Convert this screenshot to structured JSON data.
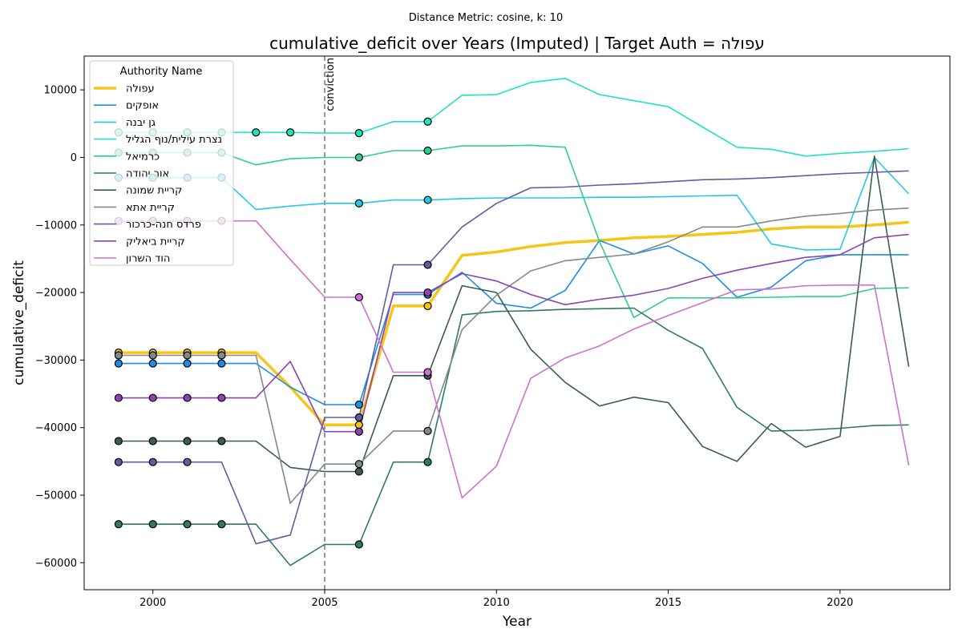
{
  "chart_data": {
    "type": "line",
    "suptitle": "Distance Metric: cosine, k: 10",
    "title": "cumulative_deficit over Years (Imputed) | Target Auth = עפולה",
    "xlabel": "Year",
    "ylabel": "cumulative_deficit",
    "xlim": [
      1998,
      2023.2
    ],
    "ylim": [
      -64000,
      15000
    ],
    "x_ticks": [
      2000,
      2005,
      2010,
      2015,
      2020
    ],
    "y_ticks": [
      -60000,
      -50000,
      -40000,
      -30000,
      -20000,
      -10000,
      0,
      10000
    ],
    "grid": false,
    "legend_title": "Authority Name",
    "legend_position": "top-left",
    "annotation": {
      "text": "conviction",
      "x": 2005
    },
    "x": [
      1999,
      2000,
      2001,
      2002,
      2003,
      2004,
      2005,
      2006,
      2007,
      2008,
      2009,
      2010,
      2011,
      2012,
      2013,
      2014,
      2015,
      2016,
      2017,
      2018,
      2019,
      2020,
      2021,
      2022
    ],
    "series": [
      {
        "name": "עפולה",
        "color": "#f5c518",
        "width": 3.5,
        "imputed_years": [
          1999,
          2000,
          2001,
          2002,
          2006,
          2008
        ],
        "values": [
          -28900,
          -28900,
          -28900,
          -28900,
          -28900,
          -34000,
          -39600,
          -39600,
          -22000,
          -22000,
          -14500,
          -14000,
          -13200,
          -12600,
          -12300,
          -11900,
          -11700,
          -11400,
          -11100,
          -10600,
          -10300,
          -10300,
          -10000,
          -9600
        ]
      },
      {
        "name": "אופקים",
        "color": "#1f8ce6",
        "width": 1.6,
        "imputed_years": [
          1999,
          2000,
          2001,
          2002,
          2006,
          2008
        ],
        "values": [
          -30500,
          -30500,
          -30500,
          -30500,
          -30500,
          -34000,
          -36600,
          -36600,
          -20300,
          -20300,
          -17000,
          -21600,
          -22300,
          -19700,
          -12300,
          -14300,
          -13100,
          -15700,
          -20700,
          -19200,
          -15300,
          -14400,
          -14400,
          -14400
        ]
      },
      {
        "name": "גן יבנה",
        "color": "#22c8e8",
        "width": 1.6,
        "imputed_years": [
          1999,
          2000,
          2001,
          2002,
          2006,
          2008
        ],
        "values": [
          -3000,
          -3000,
          -3000,
          -3000,
          -7700,
          -7200,
          -6800,
          -6800,
          -6300,
          -6300,
          -6100,
          -6000,
          -6000,
          -6000,
          -5900,
          -5900,
          -5800,
          -5700,
          -5600,
          -12800,
          -13700,
          -13600,
          0,
          -5400
        ]
      },
      {
        "name": "נצרת עילית/נוף הגליל",
        "color": "#1de4c0",
        "width": 1.6,
        "imputed_years": [
          1999,
          2000,
          2001,
          2002,
          2003,
          2004,
          2006,
          2008
        ],
        "values": [
          3700,
          3700,
          3700,
          3700,
          3700,
          3700,
          3600,
          3600,
          5300,
          5300,
          9200,
          9300,
          11100,
          11700,
          9300,
          8400,
          7500,
          4500,
          1500,
          1200,
          200,
          600,
          900,
          1300
        ]
      },
      {
        "name": "כרמיאל",
        "color": "#2fcf8a",
        "width": 1.6,
        "imputed_years": [
          1999,
          2000,
          2001,
          2002,
          2006,
          2008
        ],
        "values": [
          700,
          700,
          700,
          700,
          -1100,
          -200,
          0,
          0,
          1000,
          1000,
          1700,
          1700,
          1800,
          1500,
          -12500,
          -23700,
          -20800,
          -20800,
          -20800,
          -20700,
          -20600,
          -20600,
          -19400,
          -19300
        ]
      },
      {
        "name": "אור יהודה",
        "color": "#2f7a62",
        "width": 1.6,
        "imputed_years": [
          1999,
          2000,
          2001,
          2002,
          2006,
          2008
        ],
        "values": [
          -54300,
          -54300,
          -54300,
          -54300,
          -54300,
          -60400,
          -57300,
          -57300,
          -45100,
          -45100,
          -23300,
          -22800,
          -22700,
          -22500,
          -22400,
          -22300,
          -25600,
          -28300,
          -37000,
          -40500,
          -40400,
          -40100,
          -39700,
          -39600
        ]
      },
      {
        "name": "קריית שמונה",
        "color": "#3a5c52",
        "width": 1.6,
        "imputed_years": [
          1999,
          2000,
          2001,
          2002,
          2006,
          2008
        ],
        "values": [
          -42000,
          -42000,
          -42000,
          -42000,
          -42000,
          -45900,
          -46500,
          -46500,
          -32300,
          -32300,
          -19000,
          -20000,
          -28400,
          -33300,
          -36800,
          -35500,
          -36300,
          -42800,
          -45000,
          -39400,
          -42900,
          -41300,
          200,
          -31000
        ]
      },
      {
        "name": "קריית אתא",
        "color": "#808a88",
        "width": 1.6,
        "imputed_years": [
          1999,
          2000,
          2001,
          2002,
          2006,
          2008
        ],
        "values": [
          -29300,
          -29300,
          -29300,
          -29300,
          -29300,
          -51200,
          -45400,
          -45400,
          -40500,
          -40500,
          -25500,
          -20400,
          -16800,
          -15300,
          -14800,
          -14300,
          -12500,
          -10300,
          -10300,
          -9400,
          -8700,
          -8300,
          -7800,
          -7500
        ]
      },
      {
        "name": "פרדס חנה-כרכור",
        "color": "#5e5ea0",
        "width": 1.6,
        "imputed_years": [
          1999,
          2000,
          2001,
          2006,
          2008
        ],
        "values": [
          -45100,
          -45100,
          -45100,
          -45100,
          -57200,
          -55900,
          -38500,
          -38500,
          -15900,
          -15900,
          -10300,
          -6800,
          -4500,
          -4400,
          -4100,
          -3900,
          -3600,
          -3300,
          -3200,
          -3000,
          -2700,
          -2400,
          -2200,
          -2000
        ]
      },
      {
        "name": "קריית ביאליק",
        "color": "#8a44b4",
        "width": 1.6,
        "imputed_years": [
          1999,
          2000,
          2001,
          2002,
          2006,
          2008
        ],
        "values": [
          -35600,
          -35600,
          -35600,
          -35600,
          -35600,
          -30200,
          -40600,
          -40600,
          -20000,
          -20000,
          -17200,
          -18300,
          -20300,
          -21800,
          -21000,
          -20400,
          -19400,
          -17900,
          -16700,
          -15700,
          -14800,
          -14400,
          -11900,
          -11400
        ]
      },
      {
        "name": "הוד השרון",
        "color": "#d070d0",
        "width": 1.6,
        "imputed_years": [
          1999,
          2000,
          2001,
          2002,
          2006,
          2008
        ],
        "values": [
          -9400,
          -9400,
          -9400,
          -9400,
          -9400,
          -15100,
          -20700,
          -20700,
          -31800,
          -31800,
          -50400,
          -45700,
          -32700,
          -29700,
          -27900,
          -25400,
          -23400,
          -21500,
          -19600,
          -19500,
          -19000,
          -18900,
          -18900,
          -45600
        ]
      }
    ]
  }
}
